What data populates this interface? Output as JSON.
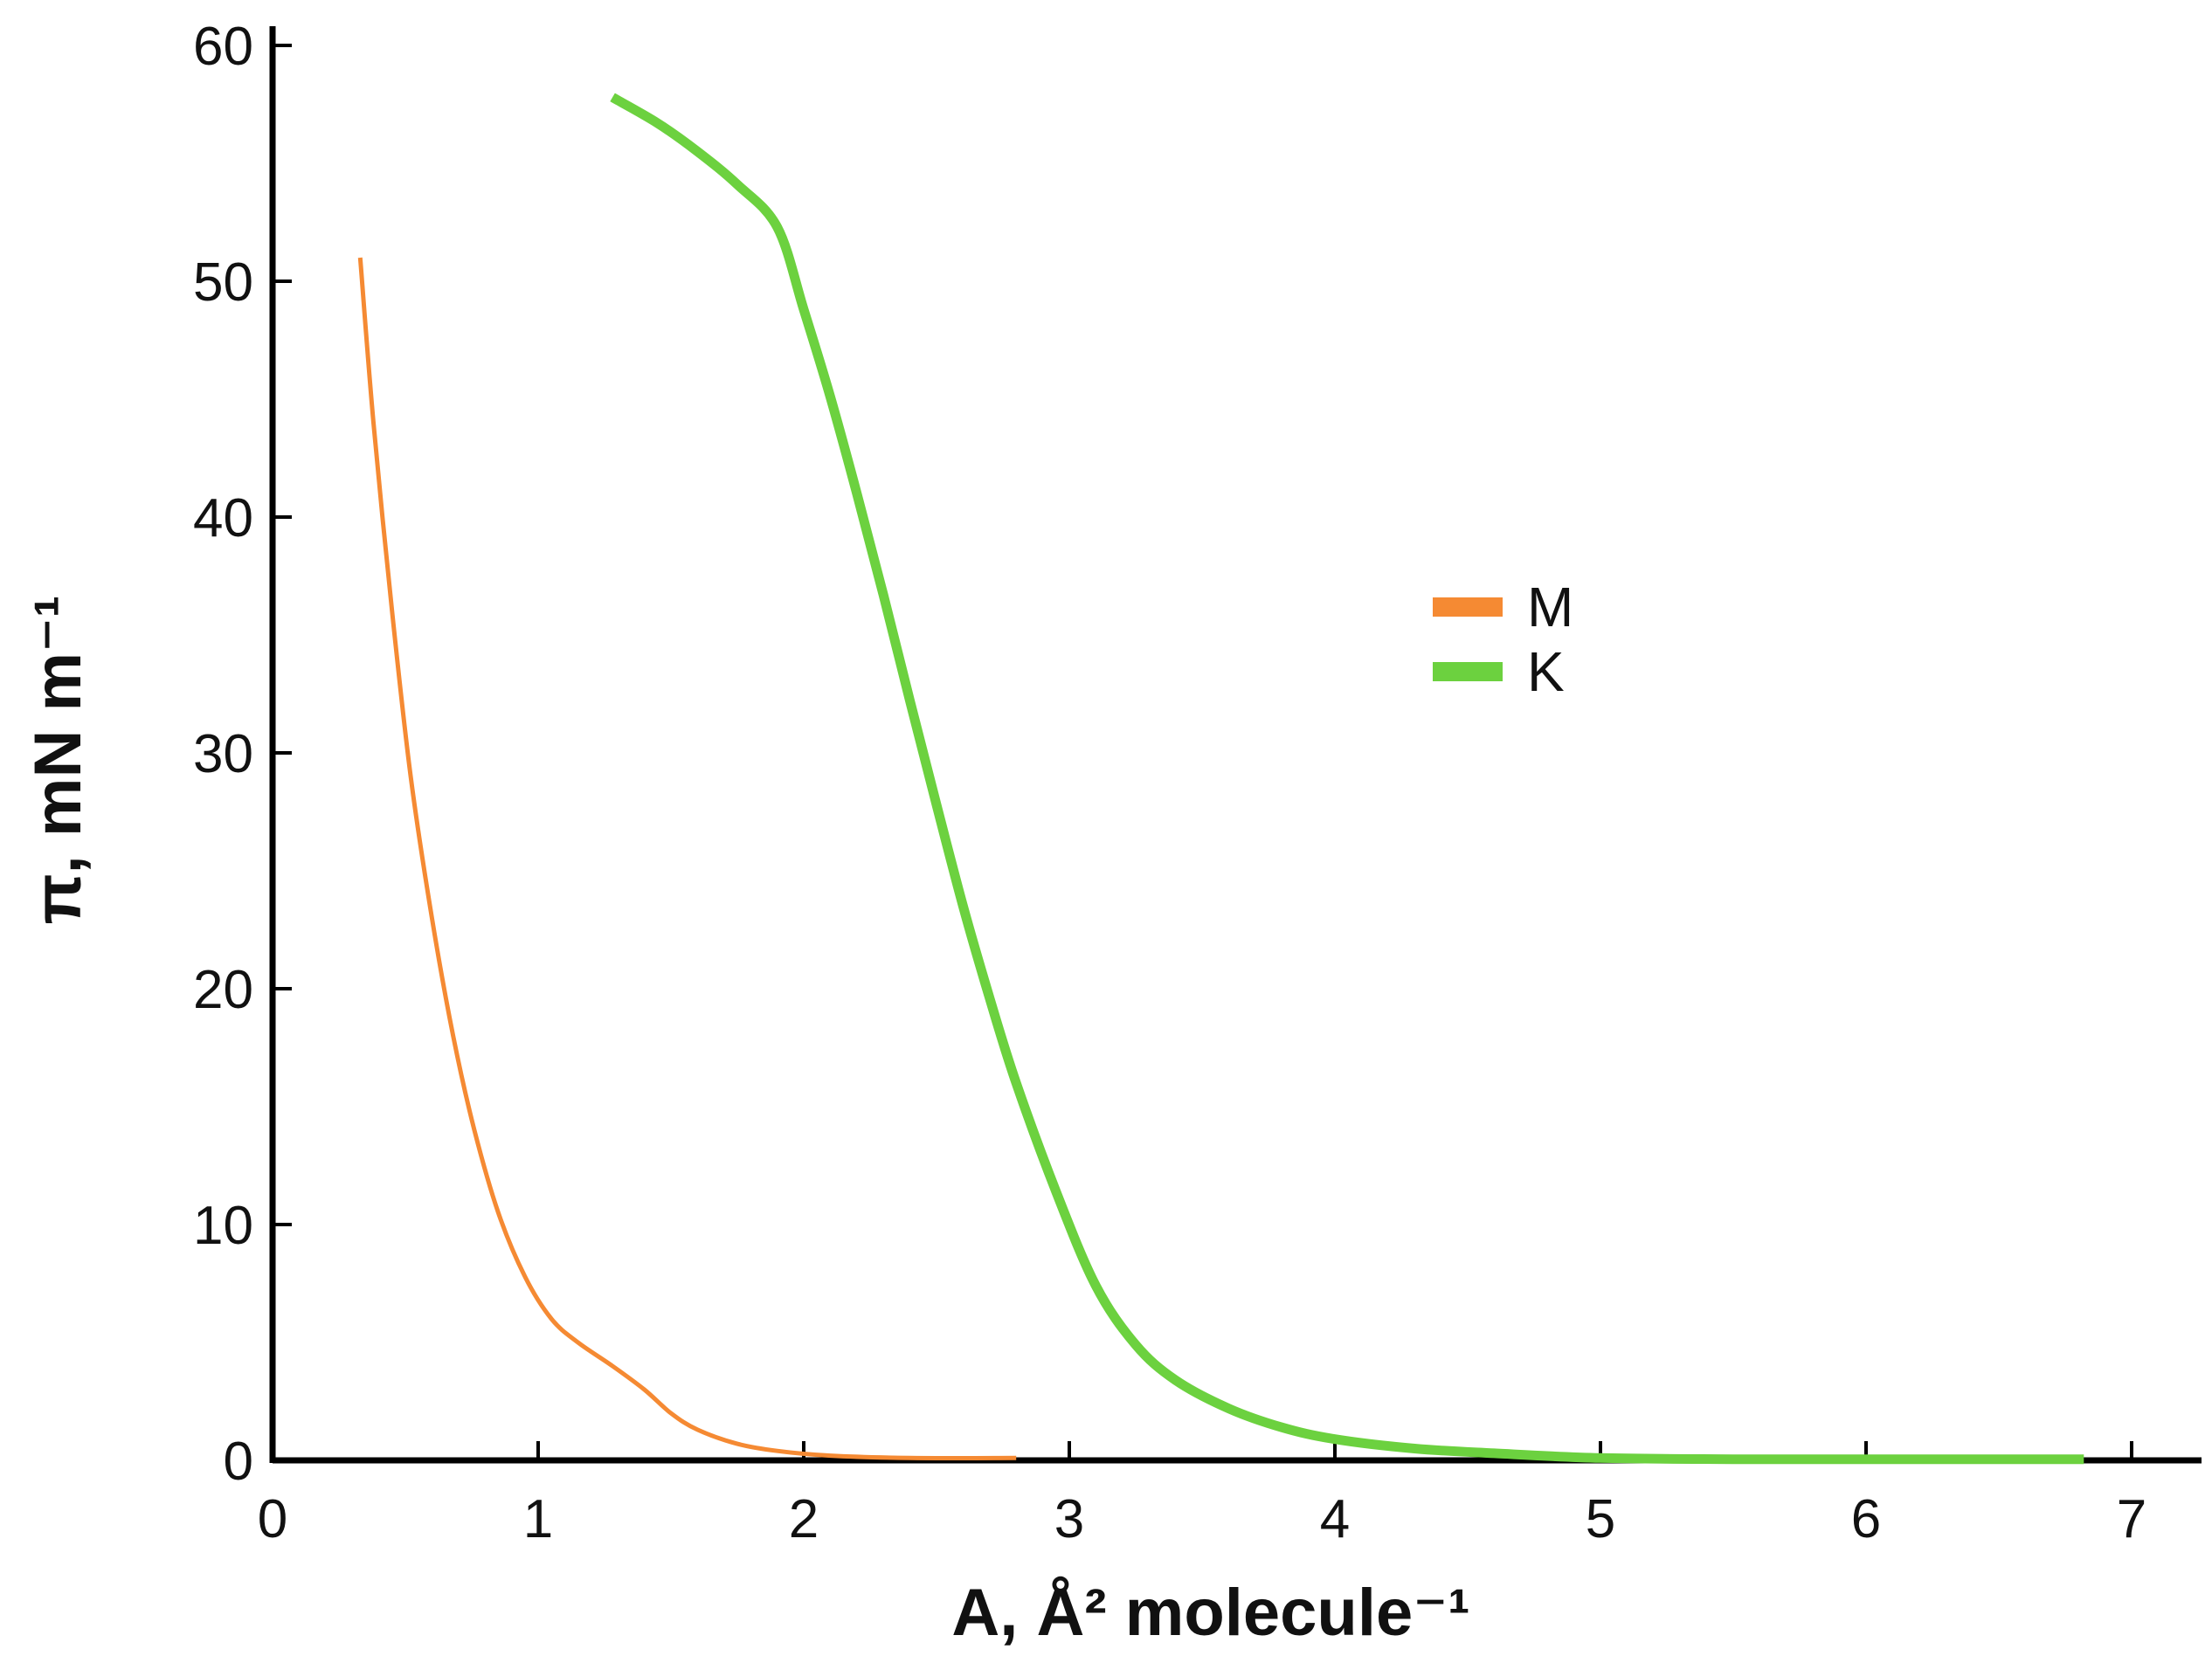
{
  "chart_data": {
    "type": "line",
    "xlabel": "A, Å² molecule⁻¹",
    "ylabel": "π, mN m⁻¹",
    "xlim": [
      0,
      7.2
    ],
    "ylim": [
      0,
      60
    ],
    "x_ticks": [
      0,
      1,
      2,
      3,
      4,
      5,
      6,
      7
    ],
    "y_ticks": [
      0,
      10,
      20,
      30,
      40,
      50,
      60
    ],
    "grid": false,
    "legend_position": "center-right",
    "series": [
      {
        "name": "M",
        "color": "#f58a33",
        "line_width": "thin",
        "x": [
          0.33,
          0.38,
          0.45,
          0.52,
          0.6,
          0.68,
          0.76,
          0.85,
          0.95,
          1.05,
          1.15,
          1.28,
          1.4,
          1.5,
          1.6,
          1.75,
          1.9,
          2.1,
          2.4,
          2.8
        ],
        "y": [
          51,
          44,
          36,
          29,
          23,
          18,
          14,
          10.5,
          7.8,
          6.0,
          5.0,
          4.0,
          3.0,
          2.0,
          1.3,
          0.7,
          0.4,
          0.2,
          0.1,
          0.1
        ]
      },
      {
        "name": "K",
        "color": "#6cd13f",
        "line_width": "thick",
        "x": [
          1.28,
          1.45,
          1.6,
          1.75,
          1.9,
          2.0,
          2.1,
          2.2,
          2.3,
          2.4,
          2.5,
          2.6,
          2.7,
          2.8,
          2.95,
          3.1,
          3.25,
          3.4,
          3.6,
          3.8,
          4.0,
          4.3,
          4.6,
          5.0,
          5.5,
          6.0,
          6.5,
          6.82
        ],
        "y": [
          57.8,
          56.7,
          55.5,
          54.1,
          52.3,
          48.8,
          45.1,
          41.0,
          36.7,
          32.2,
          27.8,
          23.5,
          19.6,
          16.0,
          11.4,
          7.4,
          4.9,
          3.4,
          2.2,
          1.4,
          0.9,
          0.5,
          0.3,
          0.1,
          0.05,
          0.05,
          0.05,
          0.05
        ]
      }
    ]
  }
}
